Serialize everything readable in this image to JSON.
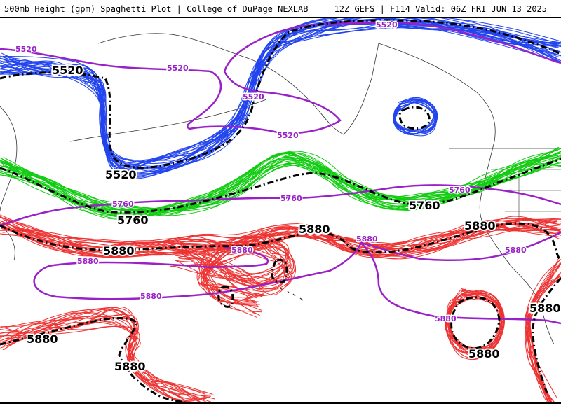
{
  "header": {
    "left_text": "500mb Height (gpm) Spaghetti Plot | College of DuPage NEXLAB",
    "right_text": "12Z GEFS | F114 Valid: 06Z FRI JUN 13 2025"
  },
  "contours": {
    "c5520": {
      "value": "5520",
      "member_color": "#2244ee",
      "mean_color": "#000000",
      "ref_color": "#9a20c8"
    },
    "c5760": {
      "value": "5760",
      "member_color": "#11cc11",
      "mean_color": "#000000",
      "ref_color": "#9a20c8"
    },
    "c5880": {
      "value": "5880",
      "member_color": "#ee3333",
      "mean_color": "#000000",
      "ref_color": "#9a20c8"
    }
  },
  "map": {
    "land_outline_color": "#333333",
    "label_5520_mean": "5520",
    "label_5520_mean_b": "5520",
    "label_5760_mean": "5760",
    "label_5760_mean_b": "5760",
    "label_5880_mean_a": "5880",
    "label_5880_mean_b": "5880",
    "label_5880_mean_c": "5880",
    "label_5880_mean_d": "5880",
    "label_5880_mean_e": "5880",
    "label_5880_mean_f": "5880",
    "label_5880_mean_g": "5880",
    "ref_5520_a": "5520",
    "ref_5520_b": "5520",
    "ref_5520_c": "5520",
    "ref_5520_d": "5520",
    "ref_5520_e": "5520",
    "ref_5760_a": "5760",
    "ref_5760_b": "5760",
    "ref_5760_c": "5760",
    "ref_5880_a": "5880",
    "ref_5880_b": "5880",
    "ref_5880_c": "5880",
    "ref_5880_d": "5880",
    "ref_5880_e": "5880",
    "ref_5880_f": "5880"
  }
}
